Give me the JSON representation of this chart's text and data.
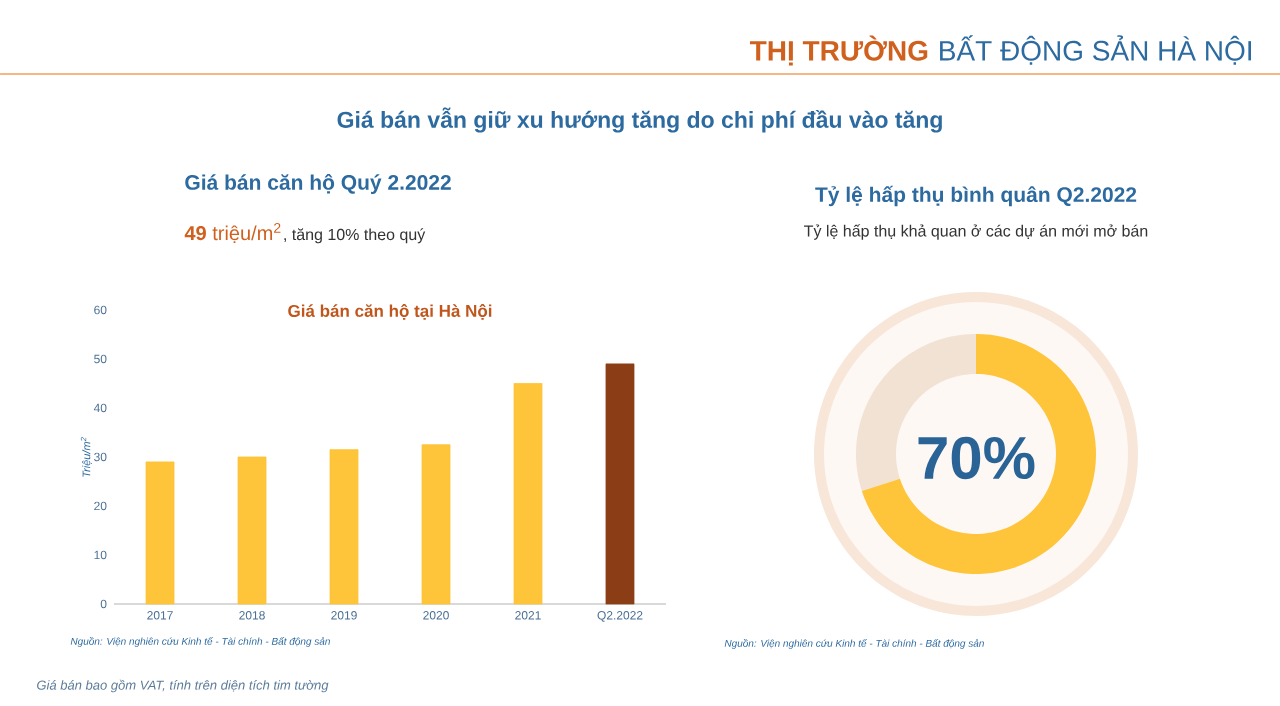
{
  "chart_data": [
    {
      "type": "bar",
      "title": "Giá bán căn hộ tại Hà Nội",
      "ylabel": "Triệu/m$^{2}$",
      "categories": [
        "2017",
        "2018",
        "2019",
        "2020",
        "2021",
        "Q2.2022"
      ],
      "values": [
        29,
        30,
        31.5,
        32.5,
        45,
        49
      ],
      "colors": [
        "#fec43a",
        "#fec43a",
        "#fec43a",
        "#fec43a",
        "#fec43a",
        "#8b3e16"
      ],
      "ylim": [
        0,
        60
      ],
      "yticks": [
        0,
        10,
        20,
        30,
        40,
        50,
        60
      ],
      "annotations": [
        "THỊ TRƯỜNG",
        "BẤT ĐỘNG SẢN HÀ NỘI",
        "Giá bán vẫn giữ xu hướng tăng do chi phí đầu vào tăng",
        "Giá bán căn hộ Quý 2.2022",
        "**49** triệu/m$^{2}$",
        ", tăng 10% theo quý",
        "Nguồn: Viện nghiên cứu Kinh tế - Tài chính - Bất động sản",
        "Giá bán bao gồm VAT, tính trên diện tích tim tường"
      ]
    },
    {
      "type": "donut",
      "title": "Tỷ lệ hấp thụ bình quân Q2.2022",
      "subtitle": "Tỷ lệ hấp thụ khả quan ở các dự án mới mở bán",
      "categories": [
        null,
        null
      ],
      "values": [
        70,
        30
      ],
      "colors": [
        "#fec43a",
        "#f2e2d3"
      ],
      "value_labels": [
        "70%",
        null
      ],
      "annotations": [
        "Nguồn: Viện nghiên cứu Kinh tế - Tài chính - Bất động sản"
      ]
    }
  ]
}
